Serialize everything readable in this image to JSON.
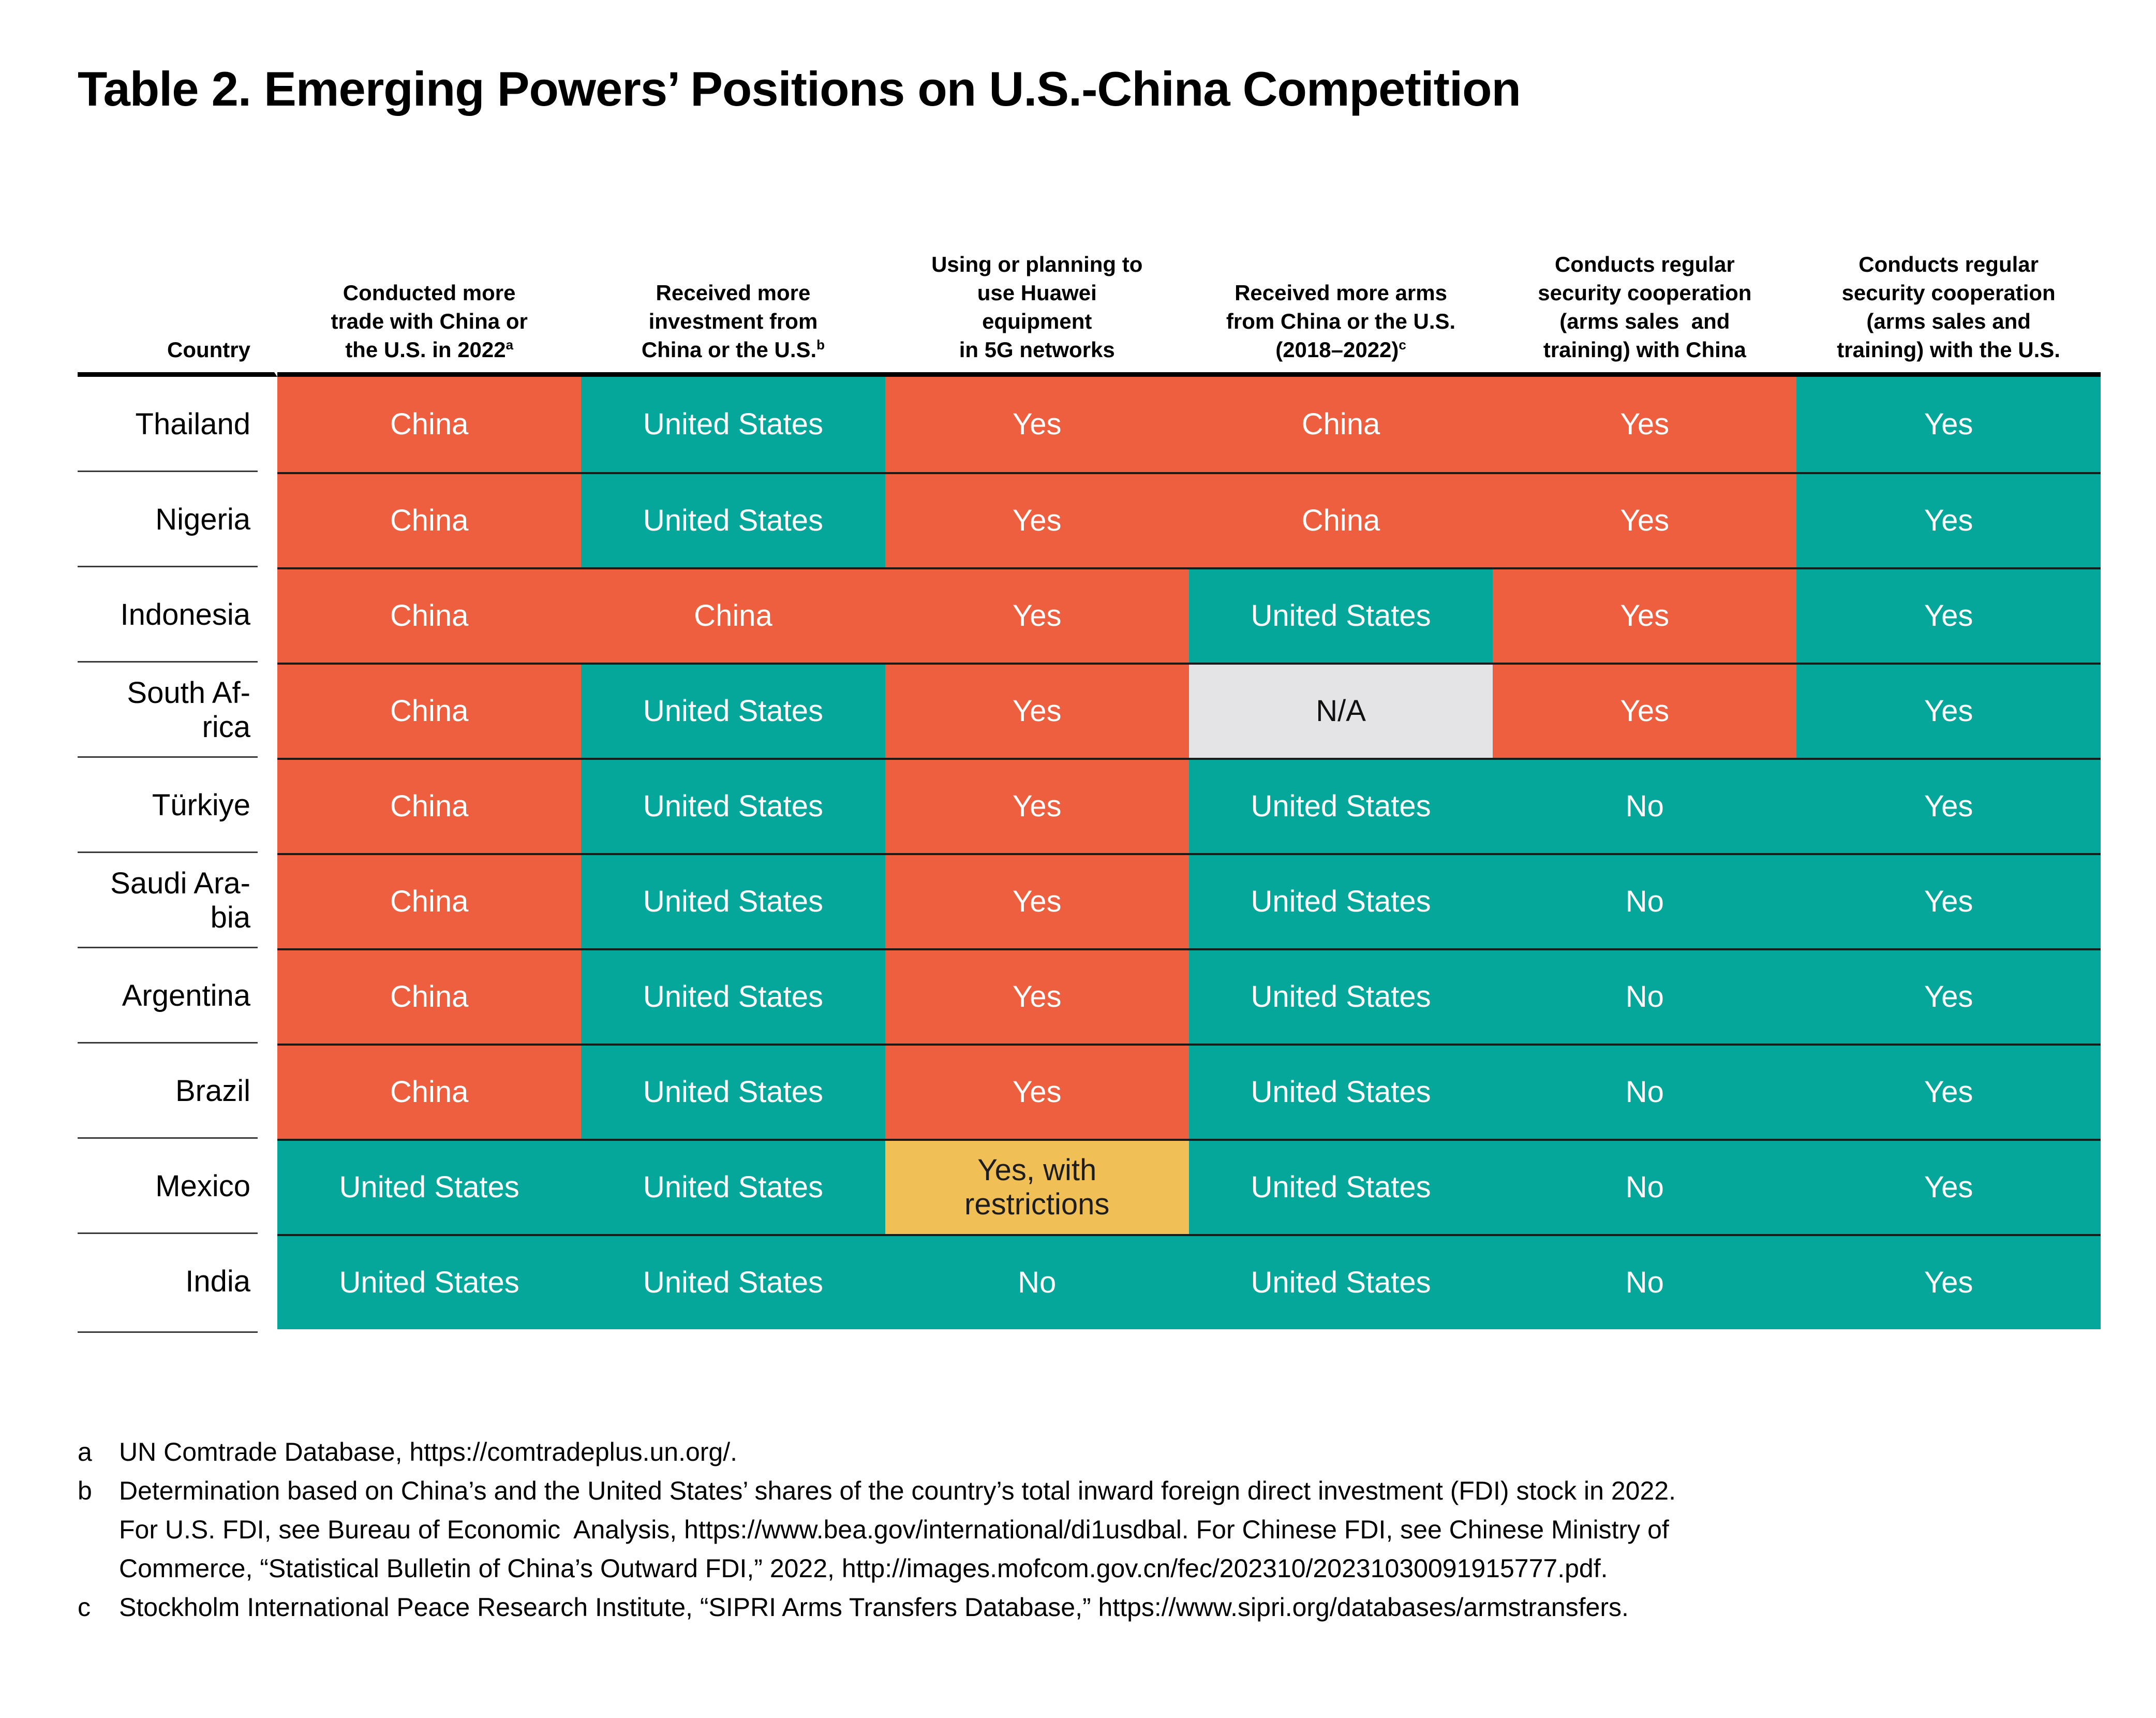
{
  "title": "Table 2. Emerging Powers’ Positions on U.S.-China Competition",
  "palette": {
    "china_orange": "#EE5F3F",
    "us_teal": "#05A79B",
    "restricted_yellow": "#F0BF55",
    "na_gray": "#E4E4E6",
    "header_rule_black": "#000000",
    "row_rule_dark": "#1b1b1b",
    "cell_text_light": "#FFFFFF",
    "cell_text_dark": "#1d1d1d"
  },
  "table": {
    "country_header": "Country",
    "columns": [
      {
        "key": "trade",
        "lines": [
          "Conducted more",
          "trade with China or",
          "the U.S. in 2022"
        ],
        "sup": "a"
      },
      {
        "key": "investment",
        "lines": [
          "Received more",
          "investment from",
          "China or the U.S."
        ],
        "sup": "b"
      },
      {
        "key": "huawei",
        "lines": [
          "Using or planning to",
          "use Huawei",
          "equipment",
          "in 5G networks"
        ],
        "sup": null
      },
      {
        "key": "arms",
        "lines": [
          "Received more arms",
          "from China or the U.S.",
          "(2018–2022)"
        ],
        "sup": "c"
      },
      {
        "key": "coop-china",
        "lines": [
          "Conducts regular",
          "security cooperation",
          "(arms sales  and",
          "training) with China"
        ],
        "sup": null
      },
      {
        "key": "coop-us",
        "lines": [
          "Conducts regular",
          "security cooperation",
          "(arms sales and",
          "training) with the U.S."
        ],
        "sup": null
      }
    ],
    "rows": [
      {
        "country": "Thailand",
        "cells": [
          {
            "text": "China",
            "color": "china"
          },
          {
            "text": "United States",
            "color": "us"
          },
          {
            "text": "Yes",
            "color": "china"
          },
          {
            "text": "China",
            "color": "china"
          },
          {
            "text": "Yes",
            "color": "china"
          },
          {
            "text": "Yes",
            "color": "us"
          }
        ]
      },
      {
        "country": "Nigeria",
        "cells": [
          {
            "text": "China",
            "color": "china"
          },
          {
            "text": "United States",
            "color": "us"
          },
          {
            "text": "Yes",
            "color": "china"
          },
          {
            "text": "China",
            "color": "china"
          },
          {
            "text": "Yes",
            "color": "china"
          },
          {
            "text": "Yes",
            "color": "us"
          }
        ]
      },
      {
        "country": "Indonesia",
        "cells": [
          {
            "text": "China",
            "color": "china"
          },
          {
            "text": "China",
            "color": "china"
          },
          {
            "text": "Yes",
            "color": "china"
          },
          {
            "text": "United States",
            "color": "us"
          },
          {
            "text": "Yes",
            "color": "china"
          },
          {
            "text": "Yes",
            "color": "us"
          }
        ]
      },
      {
        "country": "South Af-\nrica",
        "cells": [
          {
            "text": "China",
            "color": "china"
          },
          {
            "text": "United States",
            "color": "us"
          },
          {
            "text": "Yes",
            "color": "china"
          },
          {
            "text": "N/A",
            "color": "na"
          },
          {
            "text": "Yes",
            "color": "china"
          },
          {
            "text": "Yes",
            "color": "us"
          }
        ]
      },
      {
        "country": "Türkiye",
        "cells": [
          {
            "text": "China",
            "color": "china"
          },
          {
            "text": "United States",
            "color": "us"
          },
          {
            "text": "Yes",
            "color": "china"
          },
          {
            "text": "United States",
            "color": "us"
          },
          {
            "text": "No",
            "color": "us"
          },
          {
            "text": "Yes",
            "color": "us"
          }
        ]
      },
      {
        "country": "Saudi Ara-\nbia",
        "cells": [
          {
            "text": "China",
            "color": "china"
          },
          {
            "text": "United States",
            "color": "us"
          },
          {
            "text": "Yes",
            "color": "china"
          },
          {
            "text": "United States",
            "color": "us"
          },
          {
            "text": "No",
            "color": "us"
          },
          {
            "text": "Yes",
            "color": "us"
          }
        ]
      },
      {
        "country": "Argentina",
        "cells": [
          {
            "text": "China",
            "color": "china"
          },
          {
            "text": "United States",
            "color": "us"
          },
          {
            "text": "Yes",
            "color": "china"
          },
          {
            "text": "United States",
            "color": "us"
          },
          {
            "text": "No",
            "color": "us"
          },
          {
            "text": "Yes",
            "color": "us"
          }
        ]
      },
      {
        "country": "Brazil",
        "cells": [
          {
            "text": "China",
            "color": "china"
          },
          {
            "text": "United States",
            "color": "us"
          },
          {
            "text": "Yes",
            "color": "china"
          },
          {
            "text": "United States",
            "color": "us"
          },
          {
            "text": "No",
            "color": "us"
          },
          {
            "text": "Yes",
            "color": "us"
          }
        ]
      },
      {
        "country": "Mexico",
        "cells": [
          {
            "text": "United States",
            "color": "us"
          },
          {
            "text": "United States",
            "color": "us"
          },
          {
            "text": "Yes, with\nrestrictions",
            "color": "yellow"
          },
          {
            "text": "United States",
            "color": "us"
          },
          {
            "text": "No",
            "color": "us"
          },
          {
            "text": "Yes",
            "color": "us"
          }
        ]
      },
      {
        "country": "India",
        "cells": [
          {
            "text": "United States",
            "color": "us"
          },
          {
            "text": "United States",
            "color": "us"
          },
          {
            "text": "No",
            "color": "us"
          },
          {
            "text": "United States",
            "color": "us"
          },
          {
            "text": "No",
            "color": "us"
          },
          {
            "text": "Yes",
            "color": "us"
          }
        ]
      }
    ]
  },
  "footnotes": [
    {
      "marker": "a",
      "lines": [
        "UN Comtrade Database, https://comtradeplus.un.org/."
      ]
    },
    {
      "marker": "b",
      "lines": [
        "Determination based on China’s and the United States’ shares of the country’s total inward foreign direct investment (FDI) stock in 2022.",
        "For U.S. FDI, see Bureau of Economic  Analysis, https://www.bea.gov/international/di1usdbal. For Chinese FDI, see Chinese Ministry of",
        "Commerce, “Statistical Bulletin of China’s Outward FDI,” 2022, http://images.mofcom.gov.cn/fec/202310/20231030091915777.pdf."
      ]
    },
    {
      "marker": "c",
      "lines": [
        "Stockholm International Peace Research Institute, “SIPRI Arms Transfers Database,” https://www.sipri.org/databases/armstransfers."
      ]
    }
  ]
}
